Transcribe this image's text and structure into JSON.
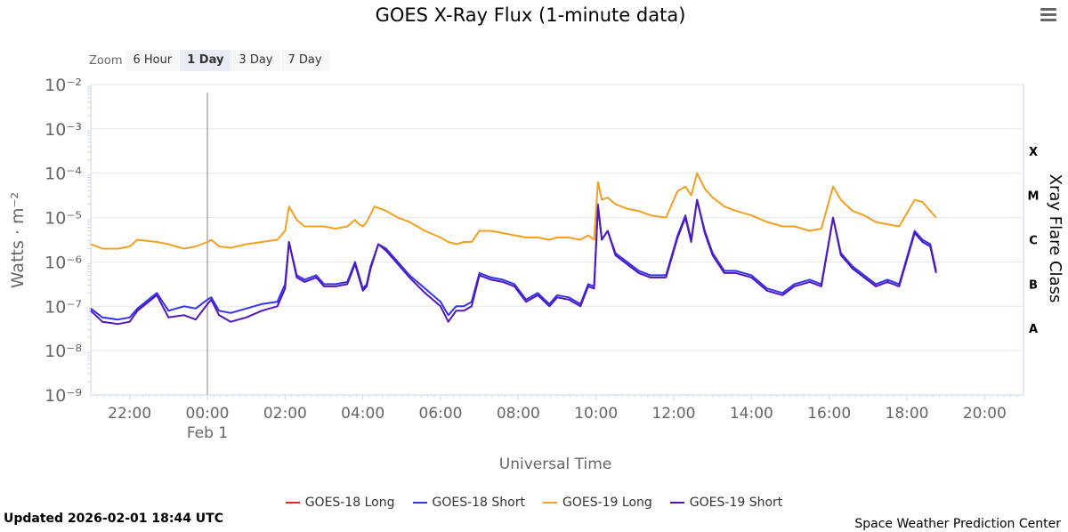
{
  "header": {
    "title": "GOES X-Ray Flux (1-minute data)"
  },
  "zoom": {
    "label": "Zoom",
    "options": [
      "6 Hour",
      "1 Day",
      "3 Day",
      "7 Day"
    ],
    "active": "1 Day"
  },
  "footer": {
    "updated": "Updated 2026-02-01 18:44 UTC",
    "credit": "Space Weather Prediction Center"
  },
  "chart_data": {
    "type": "line",
    "title": "GOES X-Ray Flux (1-minute data)",
    "xlabel": "Universal Time",
    "ylabel": "Watts · m⁻²",
    "y2label": "Xray Flare Class",
    "yscale": "log",
    "ylim_exp": [
      -9,
      -2
    ],
    "y_ticks": [
      "10⁻²",
      "10⁻³",
      "10⁻⁴",
      "10⁻⁵",
      "10⁻⁶",
      "10⁻⁷",
      "10⁻⁸",
      "10⁻⁹"
    ],
    "xlim_hours": [
      -3,
      21
    ],
    "x_ticks": [
      {
        "h": -2,
        "label": "22:00"
      },
      {
        "h": 0,
        "label": "00:00",
        "sub": "Feb 1"
      },
      {
        "h": 2,
        "label": "02:00"
      },
      {
        "h": 4,
        "label": "04:00"
      },
      {
        "h": 6,
        "label": "06:00"
      },
      {
        "h": 8,
        "label": "08:00"
      },
      {
        "h": 10,
        "label": "10:00"
      },
      {
        "h": 12,
        "label": "12:00"
      },
      {
        "h": 14,
        "label": "14:00"
      },
      {
        "h": 16,
        "label": "16:00"
      },
      {
        "h": 18,
        "label": "18:00"
      },
      {
        "h": 20,
        "label": "20:00"
      }
    ],
    "flare_classes": [
      {
        "label": "X",
        "exp": -3.5
      },
      {
        "label": "M",
        "exp": -4.5
      },
      {
        "label": "C",
        "exp": -5.5
      },
      {
        "label": "B",
        "exp": -6.5
      },
      {
        "label": "A",
        "exp": -7.5
      }
    ],
    "marker_hour": 0,
    "grid": true,
    "legend_position": "bottom",
    "series": [
      {
        "name": "GOES-18 Long",
        "color": "#ee2222",
        "points": []
      },
      {
        "name": "GOES-18 Short",
        "color": "#3333ee",
        "points": [
          [
            -3,
            -7.05
          ],
          [
            -2.7,
            -7.25
          ],
          [
            -2.3,
            -7.3
          ],
          [
            -2.0,
            -7.25
          ],
          [
            -1.8,
            -7.05
          ],
          [
            -1.3,
            -6.7
          ],
          [
            -1.0,
            -7.1
          ],
          [
            -0.6,
            -7.0
          ],
          [
            -0.3,
            -7.05
          ],
          [
            0,
            -6.85
          ],
          [
            0.1,
            -6.8
          ],
          [
            0.3,
            -7.1
          ],
          [
            0.6,
            -7.15
          ],
          [
            1.0,
            -7.05
          ],
          [
            1.4,
            -6.95
          ],
          [
            1.8,
            -6.9
          ],
          [
            2.0,
            -6.5
          ],
          [
            2.1,
            -5.55
          ],
          [
            2.3,
            -6.3
          ],
          [
            2.5,
            -6.4
          ],
          [
            2.8,
            -6.3
          ],
          [
            3.0,
            -6.5
          ],
          [
            3.3,
            -6.5
          ],
          [
            3.6,
            -6.45
          ],
          [
            3.8,
            -6.0
          ],
          [
            3.9,
            -6.3
          ],
          [
            4.0,
            -6.6
          ],
          [
            4.1,
            -6.5
          ],
          [
            4.2,
            -6.1
          ],
          [
            4.4,
            -5.6
          ],
          [
            4.6,
            -5.7
          ],
          [
            4.9,
            -6.0
          ],
          [
            5.2,
            -6.3
          ],
          [
            5.6,
            -6.6
          ],
          [
            6.0,
            -6.9
          ],
          [
            6.2,
            -7.2
          ],
          [
            6.4,
            -7.0
          ],
          [
            6.6,
            -7.0
          ],
          [
            6.8,
            -6.9
          ],
          [
            7.0,
            -6.25
          ],
          [
            7.3,
            -6.35
          ],
          [
            7.6,
            -6.4
          ],
          [
            7.9,
            -6.5
          ],
          [
            8.2,
            -6.85
          ],
          [
            8.5,
            -6.7
          ],
          [
            8.8,
            -6.95
          ],
          [
            9.0,
            -6.75
          ],
          [
            9.3,
            -6.8
          ],
          [
            9.6,
            -6.95
          ],
          [
            9.8,
            -6.5
          ],
          [
            9.95,
            -6.55
          ],
          [
            10.05,
            -4.7
          ],
          [
            10.15,
            -5.5
          ],
          [
            10.3,
            -5.3
          ],
          [
            10.5,
            -5.8
          ],
          [
            10.8,
            -6.0
          ],
          [
            11.1,
            -6.2
          ],
          [
            11.4,
            -6.3
          ],
          [
            11.8,
            -6.3
          ],
          [
            12.1,
            -5.4
          ],
          [
            12.3,
            -4.95
          ],
          [
            12.45,
            -5.5
          ],
          [
            12.6,
            -4.6
          ],
          [
            12.8,
            -5.3
          ],
          [
            13.0,
            -5.8
          ],
          [
            13.3,
            -6.2
          ],
          [
            13.6,
            -6.2
          ],
          [
            14.0,
            -6.3
          ],
          [
            14.4,
            -6.6
          ],
          [
            14.8,
            -6.7
          ],
          [
            15.1,
            -6.5
          ],
          [
            15.5,
            -6.4
          ],
          [
            15.8,
            -6.5
          ],
          [
            16.1,
            -5.0
          ],
          [
            16.3,
            -5.8
          ],
          [
            16.6,
            -6.1
          ],
          [
            16.9,
            -6.3
          ],
          [
            17.2,
            -6.5
          ],
          [
            17.5,
            -6.4
          ],
          [
            17.8,
            -6.5
          ],
          [
            18.0,
            -5.9
          ],
          [
            18.2,
            -5.3
          ],
          [
            18.4,
            -5.5
          ],
          [
            18.6,
            -5.6
          ],
          [
            18.75,
            -6.2
          ]
        ]
      },
      {
        "name": "GOES-19 Long",
        "color": "#f0a023",
        "points": [
          [
            -3,
            -5.6
          ],
          [
            -2.7,
            -5.7
          ],
          [
            -2.3,
            -5.7
          ],
          [
            -2.0,
            -5.65
          ],
          [
            -1.8,
            -5.5
          ],
          [
            -1.3,
            -5.55
          ],
          [
            -1.0,
            -5.6
          ],
          [
            -0.6,
            -5.7
          ],
          [
            -0.3,
            -5.65
          ],
          [
            0,
            -5.55
          ],
          [
            0.1,
            -5.5
          ],
          [
            0.3,
            -5.65
          ],
          [
            0.6,
            -5.68
          ],
          [
            1.0,
            -5.6
          ],
          [
            1.4,
            -5.55
          ],
          [
            1.8,
            -5.5
          ],
          [
            2.0,
            -5.3
          ],
          [
            2.1,
            -4.75
          ],
          [
            2.3,
            -5.05
          ],
          [
            2.5,
            -5.2
          ],
          [
            2.8,
            -5.2
          ],
          [
            3.0,
            -5.2
          ],
          [
            3.3,
            -5.25
          ],
          [
            3.6,
            -5.2
          ],
          [
            3.8,
            -5.05
          ],
          [
            3.9,
            -5.15
          ],
          [
            4.0,
            -5.2
          ],
          [
            4.1,
            -5.1
          ],
          [
            4.3,
            -4.75
          ],
          [
            4.6,
            -4.85
          ],
          [
            4.9,
            -5.0
          ],
          [
            5.2,
            -5.1
          ],
          [
            5.6,
            -5.3
          ],
          [
            6.0,
            -5.45
          ],
          [
            6.2,
            -5.55
          ],
          [
            6.4,
            -5.6
          ],
          [
            6.6,
            -5.55
          ],
          [
            6.8,
            -5.55
          ],
          [
            7.0,
            -5.3
          ],
          [
            7.3,
            -5.3
          ],
          [
            7.6,
            -5.35
          ],
          [
            7.9,
            -5.4
          ],
          [
            8.2,
            -5.45
          ],
          [
            8.5,
            -5.45
          ],
          [
            8.8,
            -5.5
          ],
          [
            9.0,
            -5.45
          ],
          [
            9.3,
            -5.45
          ],
          [
            9.6,
            -5.5
          ],
          [
            9.8,
            -5.4
          ],
          [
            9.95,
            -5.5
          ],
          [
            10.05,
            -4.2
          ],
          [
            10.15,
            -4.6
          ],
          [
            10.3,
            -4.55
          ],
          [
            10.5,
            -4.7
          ],
          [
            10.8,
            -4.8
          ],
          [
            11.1,
            -4.85
          ],
          [
            11.4,
            -4.95
          ],
          [
            11.8,
            -5.0
          ],
          [
            12.1,
            -4.4
          ],
          [
            12.3,
            -4.3
          ],
          [
            12.45,
            -4.5
          ],
          [
            12.6,
            -4.0
          ],
          [
            12.8,
            -4.35
          ],
          [
            13.0,
            -4.55
          ],
          [
            13.3,
            -4.75
          ],
          [
            13.6,
            -4.85
          ],
          [
            14.0,
            -4.95
          ],
          [
            14.4,
            -5.1
          ],
          [
            14.8,
            -5.2
          ],
          [
            15.1,
            -5.2
          ],
          [
            15.5,
            -5.3
          ],
          [
            15.8,
            -5.25
          ],
          [
            16.1,
            -4.3
          ],
          [
            16.3,
            -4.6
          ],
          [
            16.6,
            -4.85
          ],
          [
            16.9,
            -4.95
          ],
          [
            17.2,
            -5.1
          ],
          [
            17.5,
            -5.15
          ],
          [
            17.8,
            -5.2
          ],
          [
            18.0,
            -4.9
          ],
          [
            18.2,
            -4.6
          ],
          [
            18.4,
            -4.65
          ],
          [
            18.6,
            -4.85
          ],
          [
            18.75,
            -5.0
          ]
        ]
      },
      {
        "name": "GOES-19 Short",
        "color": "#5018b8",
        "points": [
          [
            -3,
            -7.1
          ],
          [
            -2.7,
            -7.35
          ],
          [
            -2.3,
            -7.4
          ],
          [
            -2.0,
            -7.35
          ],
          [
            -1.8,
            -7.1
          ],
          [
            -1.3,
            -6.75
          ],
          [
            -1.0,
            -7.25
          ],
          [
            -0.6,
            -7.2
          ],
          [
            -0.3,
            -7.3
          ],
          [
            0,
            -6.95
          ],
          [
            0.1,
            -6.85
          ],
          [
            0.3,
            -7.2
          ],
          [
            0.6,
            -7.35
          ],
          [
            1.0,
            -7.25
          ],
          [
            1.4,
            -7.1
          ],
          [
            1.8,
            -7.0
          ],
          [
            2.0,
            -6.6
          ],
          [
            2.1,
            -5.55
          ],
          [
            2.3,
            -6.35
          ],
          [
            2.5,
            -6.45
          ],
          [
            2.8,
            -6.35
          ],
          [
            3.0,
            -6.55
          ],
          [
            3.3,
            -6.55
          ],
          [
            3.6,
            -6.5
          ],
          [
            3.8,
            -6.05
          ],
          [
            3.9,
            -6.35
          ],
          [
            4.0,
            -6.65
          ],
          [
            4.1,
            -6.55
          ],
          [
            4.2,
            -6.15
          ],
          [
            4.4,
            -5.6
          ],
          [
            4.6,
            -5.75
          ],
          [
            4.9,
            -6.05
          ],
          [
            5.2,
            -6.35
          ],
          [
            5.6,
            -6.7
          ],
          [
            6.0,
            -7.0
          ],
          [
            6.2,
            -7.35
          ],
          [
            6.4,
            -7.1
          ],
          [
            6.6,
            -7.1
          ],
          [
            6.8,
            -7.0
          ],
          [
            7.0,
            -6.3
          ],
          [
            7.3,
            -6.4
          ],
          [
            7.6,
            -6.45
          ],
          [
            7.9,
            -6.55
          ],
          [
            8.2,
            -6.9
          ],
          [
            8.5,
            -6.75
          ],
          [
            8.8,
            -7.0
          ],
          [
            9.0,
            -6.8
          ],
          [
            9.3,
            -6.85
          ],
          [
            9.6,
            -7.0
          ],
          [
            9.8,
            -6.55
          ],
          [
            9.95,
            -6.6
          ],
          [
            10.05,
            -4.75
          ],
          [
            10.15,
            -5.5
          ],
          [
            10.3,
            -5.3
          ],
          [
            10.5,
            -5.85
          ],
          [
            10.8,
            -6.05
          ],
          [
            11.1,
            -6.25
          ],
          [
            11.4,
            -6.35
          ],
          [
            11.8,
            -6.35
          ],
          [
            12.1,
            -5.45
          ],
          [
            12.3,
            -5.0
          ],
          [
            12.45,
            -5.55
          ],
          [
            12.6,
            -4.6
          ],
          [
            12.8,
            -5.35
          ],
          [
            13.0,
            -5.85
          ],
          [
            13.3,
            -6.25
          ],
          [
            13.6,
            -6.25
          ],
          [
            14.0,
            -6.35
          ],
          [
            14.4,
            -6.65
          ],
          [
            14.8,
            -6.75
          ],
          [
            15.1,
            -6.55
          ],
          [
            15.5,
            -6.45
          ],
          [
            15.8,
            -6.55
          ],
          [
            16.1,
            -5.0
          ],
          [
            16.3,
            -5.85
          ],
          [
            16.6,
            -6.15
          ],
          [
            16.9,
            -6.35
          ],
          [
            17.2,
            -6.55
          ],
          [
            17.5,
            -6.45
          ],
          [
            17.8,
            -6.55
          ],
          [
            18.0,
            -5.95
          ],
          [
            18.2,
            -5.35
          ],
          [
            18.4,
            -5.55
          ],
          [
            18.6,
            -5.65
          ],
          [
            18.75,
            -6.25
          ]
        ]
      }
    ]
  }
}
